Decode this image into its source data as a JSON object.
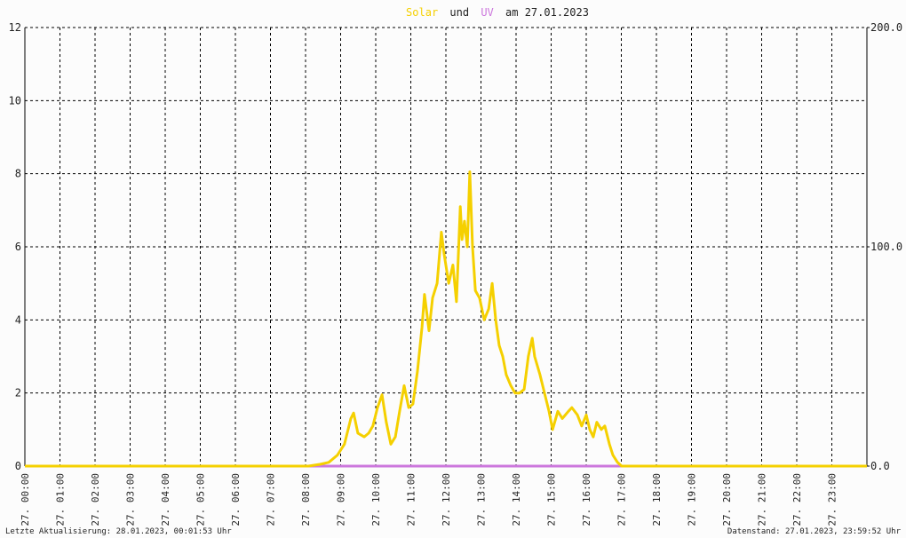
{
  "chart_data": {
    "type": "line",
    "title_parts": [
      "Solar",
      "und",
      "UV",
      "am 27.01.2023"
    ],
    "xlim": [
      0,
      24
    ],
    "xticks": [
      {
        "value": 0,
        "label": "27. 00:00"
      },
      {
        "value": 1,
        "label": "27. 01:00"
      },
      {
        "value": 2,
        "label": "27. 02:00"
      },
      {
        "value": 3,
        "label": "27. 03:00"
      },
      {
        "value": 4,
        "label": "27. 04:00"
      },
      {
        "value": 5,
        "label": "27. 05:00"
      },
      {
        "value": 6,
        "label": "27. 06:00"
      },
      {
        "value": 7,
        "label": "27. 07:00"
      },
      {
        "value": 8,
        "label": "27. 08:00"
      },
      {
        "value": 9,
        "label": "27. 09:00"
      },
      {
        "value": 10,
        "label": "27. 10:00"
      },
      {
        "value": 11,
        "label": "27. 11:00"
      },
      {
        "value": 12,
        "label": "27. 12:00"
      },
      {
        "value": 13,
        "label": "27. 13:00"
      },
      {
        "value": 14,
        "label": "27. 14:00"
      },
      {
        "value": 15,
        "label": "27. 15:00"
      },
      {
        "value": 16,
        "label": "27. 16:00"
      },
      {
        "value": 17,
        "label": "27. 17:00"
      },
      {
        "value": 18,
        "label": "27. 18:00"
      },
      {
        "value": 19,
        "label": "27. 19:00"
      },
      {
        "value": 20,
        "label": "27. 20:00"
      },
      {
        "value": 21,
        "label": "27. 21:00"
      },
      {
        "value": 22,
        "label": "27. 22:00"
      },
      {
        "value": 23,
        "label": "27. 23:00"
      }
    ],
    "ylim": [
      0,
      12
    ],
    "yticks": [
      0,
      2,
      4,
      6,
      8,
      10,
      12
    ],
    "y2lim": [
      0,
      200
    ],
    "y2ticks": [
      {
        "value": 0,
        "label": "0.0"
      },
      {
        "value": 100,
        "label": "100.0"
      },
      {
        "value": 200,
        "label": "200.0"
      }
    ],
    "grid": true,
    "series": [
      {
        "name": "Solar",
        "color": "#f5d000",
        "axis": "y2",
        "x": [
          0,
          8.08,
          8.41,
          8.66,
          8.91,
          9.11,
          9.29,
          9.37,
          9.49,
          9.67,
          9.8,
          9.92,
          10.05,
          10.18,
          10.3,
          10.43,
          10.56,
          10.68,
          10.81,
          10.94,
          11.06,
          11.19,
          11.32,
          11.39,
          11.52,
          11.62,
          11.75,
          11.87,
          11.95,
          12.08,
          12.2,
          12.3,
          12.41,
          12.46,
          12.53,
          12.61,
          12.68,
          12.76,
          12.84,
          12.96,
          13.09,
          13.22,
          13.32,
          13.42,
          13.52,
          13.62,
          13.72,
          13.85,
          13.97,
          14.1,
          14.23,
          14.35,
          14.46,
          14.53,
          14.68,
          14.81,
          14.94,
          15.04,
          15.19,
          15.32,
          15.49,
          15.59,
          15.75,
          15.87,
          16,
          16.1,
          16.2,
          16.3,
          16.43,
          16.53,
          16.66,
          16.76,
          16.89,
          17.01,
          24
        ],
        "values": [
          0,
          0,
          0.8,
          1.7,
          5,
          10,
          21.7,
          24.2,
          15,
          13.3,
          15,
          18.3,
          26.7,
          32.5,
          20,
          10,
          13.3,
          25,
          36.7,
          26.7,
          28.3,
          43.3,
          63.3,
          78.3,
          61.7,
          76.7,
          83.3,
          106.7,
          96.7,
          83.3,
          91.7,
          75,
          118.3,
          103.3,
          111.7,
          100,
          134.2,
          100,
          80,
          76.7,
          66.7,
          71.7,
          83.3,
          66.7,
          55,
          50,
          41.7,
          36.7,
          33.3,
          33.3,
          35,
          50,
          58.3,
          50,
          41.7,
          33.3,
          25,
          16.7,
          25,
          21.7,
          25,
          26.7,
          23.3,
          18.3,
          23.3,
          16.7,
          13.3,
          20,
          16.7,
          18.3,
          10,
          5,
          1.7,
          0,
          0
        ]
      },
      {
        "name": "UV",
        "color": "#cc77dd",
        "x": [
          8.08,
          17.01
        ],
        "values": [
          0,
          0
        ]
      }
    ],
    "footer_left": "Letzte Aktualisierung: 28.01.2023, 00:01:53 Uhr",
    "footer_right": "Datenstand: 27.01.2023, 23:59:52 Uhr"
  }
}
